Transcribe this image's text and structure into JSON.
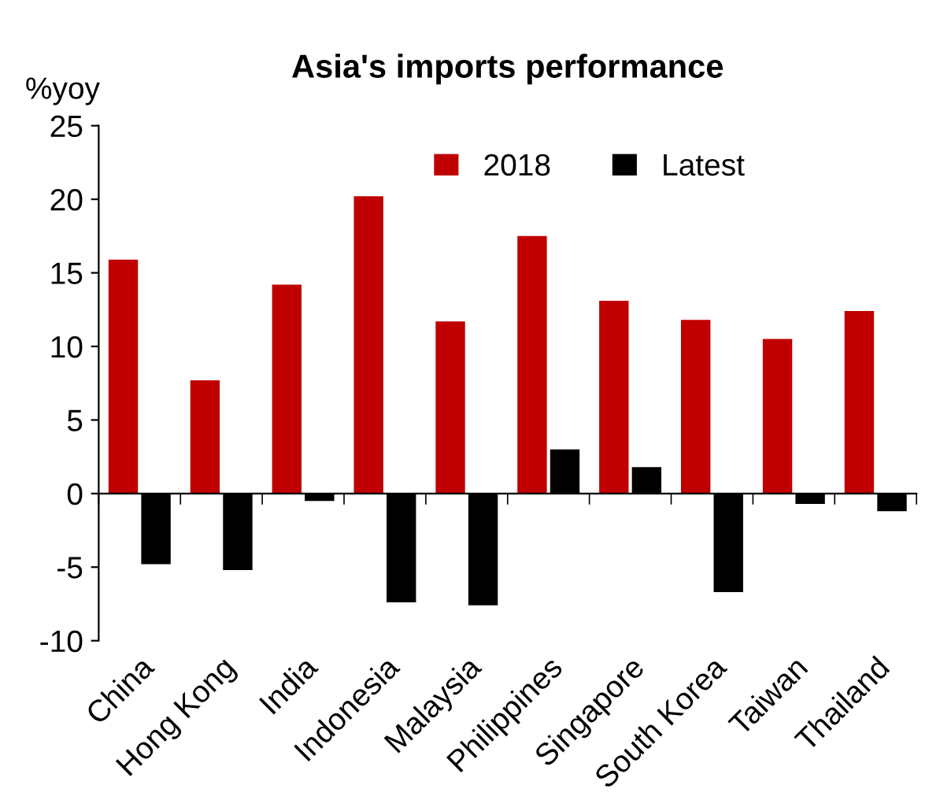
{
  "chart_data": {
    "type": "bar",
    "title": "Asia's imports performance",
    "ylabel": "%yoy",
    "categories": [
      "China",
      "Hong Kong",
      "India",
      "Indonesia",
      "Malaysia",
      "Philippines",
      "Singapore",
      "South Korea",
      "Taiwan",
      "Thailand"
    ],
    "series": [
      {
        "name": "2018",
        "color": "#c00000",
        "values": [
          15.9,
          7.7,
          14.2,
          20.2,
          11.7,
          17.5,
          13.1,
          11.8,
          10.5,
          12.4
        ]
      },
      {
        "name": "Latest",
        "color": "#000000",
        "values": [
          -4.8,
          -5.2,
          -0.5,
          -7.4,
          -7.6,
          3.0,
          1.8,
          -6.7,
          -0.7,
          -1.2
        ]
      }
    ],
    "ylim": [
      -10,
      25
    ],
    "yticks": [
      -10,
      -5,
      0,
      5,
      10,
      15,
      20,
      25
    ],
    "legend": "top"
  }
}
